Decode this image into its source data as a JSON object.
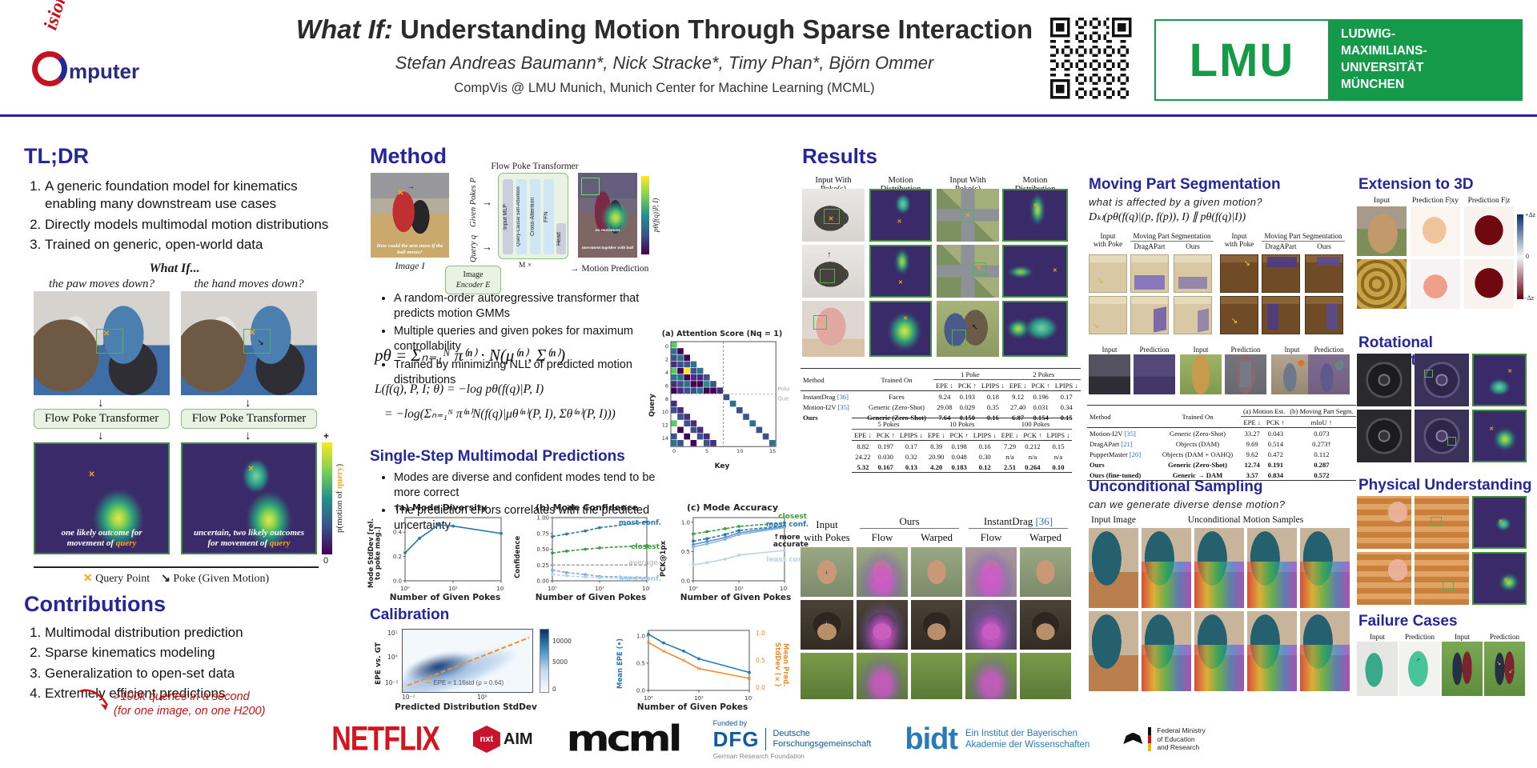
{
  "header": {
    "logo_top": "ision",
    "logo_bottom": "mputer",
    "title_italic": "What If:",
    "title_rest": " Understanding Motion Through Sparse Interaction",
    "authors": "Stefan Andreas Baumann*, Nick Stracke*, Timy Phan*, Björn Ommer",
    "affiliation": "CompVis @ LMU Munich, Munich Center for Machine Learning (MCML)",
    "lmu_acronym": "LMU",
    "lmu_name_1": "LUDWIG-",
    "lmu_name_2": "MAXIMILIANS-",
    "lmu_name_3": "UNIVERSITÄT",
    "lmu_name_4": "MÜNCHEN"
  },
  "tldr": {
    "heading": "TL;DR",
    "items": [
      "A generic foundation model for kinematics enabling many downstream use cases",
      "Directly models multimodal motion distributions",
      "Trained on generic, open-world data"
    ],
    "fig_title": "What If...",
    "cap_left": "the paw moves down?",
    "cap_right": "the hand moves down?",
    "box_label": "Flow Poke Transformer",
    "result_left_1": "one likely outcome for",
    "result_left_2": "movement of ",
    "result_right_1": "uncertain, two likely outcomes",
    "result_right_2": "for movement of ",
    "query_word": "query",
    "cbar_plus": "+",
    "cbar_zero": "0",
    "cbar_label_pre": "p(motion of ",
    "cbar_label_close": ")",
    "legend_query": "Query Point",
    "legend_poke": "Poke (Given Motion)"
  },
  "contributions": {
    "heading": "Contributions",
    "items": [
      "Multimodal distribution prediction",
      "Sparse kinematics modeling",
      "Generalization to open-set data",
      "Extremely efficient predictions"
    ],
    "note_1": ">100k queries in a second",
    "note_2": "(for one image, on one H200)"
  },
  "method": {
    "heading": "Method",
    "diagram": {
      "box_title": "Flow Poke Transformer",
      "image_label": "Image I",
      "image_caption": "How could the arm move if the ball moves?",
      "given_pokes_label": "Given Pokes P",
      "query_label": "Query q",
      "layers": [
        "Input MLP",
        "Query-Causal Self-Attention",
        "Cross-Attention",
        "FFN",
        "Head"
      ],
      "repeat_label": "M ×",
      "encoder_label_1": "Image",
      "encoder_label_2": "Encoder E",
      "output_label": "Motion Prediction",
      "output_caption_1": "no movement",
      "output_caption_2": "movement together with ball",
      "colorbar_label": "pθ(f(q)|P, I)"
    },
    "bullets": [
      "A random-order autoregressive transformer that predicts motion GMMs",
      "Multiple queries and given pokes for maximum controllability",
      "Trained by minimizing NLL of predicted motion distributions"
    ],
    "formulas": [
      "pθ = Σₙ₌₁ᴺ π⁽ⁿ⁾ · N(μ⁽ⁿ⁾, Σ⁽ⁿ⁾)",
      "L(f(q), P, I; θ) = −log pθ(f(q)|P, I)",
      "= −log(Σₙ₌₁ᴺ π⁽ⁿ⁾N(f(q)|μθ⁽ⁿ⁾(P, I), Σθ⁽ⁿ⁾(P, I)))"
    ],
    "attention": {
      "title": "(a) Attention Score (Nq = 1)",
      "xlabel": "Key",
      "ylabel": "Query",
      "labels": [
        "Pokes",
        "Queries"
      ],
      "xticks": [
        "0",
        "5",
        "10",
        "15"
      ],
      "yticks": [
        "0",
        "2",
        "4",
        "6",
        "8",
        "10",
        "12",
        "14"
      ]
    }
  },
  "single_step": {
    "heading": "Single-Step Multimodal Predictions",
    "bullets": [
      "Modes are diverse and confident modes tend to be more correct",
      "The prediction errors correlates with the predicted uncertainty"
    ],
    "plots": {
      "diversity": {
        "title": "(a) Mode Diversity",
        "ylabel_1": "Mode StdDev",
        "ylabel_2": "[rel. to poke mag.]",
        "xlabel": "Number of Given Pokes",
        "x": [
          1,
          2,
          5,
          10,
          100
        ],
        "xticks": [
          "10⁰",
          "10¹",
          "10²"
        ],
        "xtickvals": [
          1,
          10,
          100
        ],
        "ylim": [
          0,
          0.52
        ],
        "yticks": [
          "0.0",
          "0.2",
          "0.4"
        ],
        "series": [
          {
            "color": "#2878b5",
            "values": [
              0.23,
              0.35,
              0.46,
              0.45,
              0.39
            ]
          }
        ]
      },
      "confidence": {
        "title": "(b) Mode Confidence",
        "ylabel_1": "Confidence",
        "xlabel": "Number of Given Pokes",
        "x": [
          1,
          2,
          5,
          10,
          100
        ],
        "xticks": [
          "10⁰",
          "10¹",
          "10²"
        ],
        "xtickvals": [
          1,
          10,
          100
        ],
        "ylim": [
          0,
          1.0
        ],
        "yticks": [
          "0.00",
          "0.25",
          "0.50",
          "0.75",
          "1.00"
        ],
        "series": [
          {
            "name": "most conf.",
            "color": "#2878b5",
            "dash": true,
            "values": [
              0.7,
              0.74,
              0.79,
              0.84,
              0.93
            ]
          },
          {
            "name": "closest",
            "color": "#3d9c3d",
            "dash": true,
            "values": [
              0.44,
              0.47,
              0.5,
              0.52,
              0.56
            ]
          },
          {
            "name": "average",
            "color": "#aaaaaa",
            "dash": true,
            "nomark": true,
            "values": [
              0.25,
              0.25,
              0.25,
              0.25,
              0.25
            ]
          },
          {
            "color": "#7fb0d9",
            "dash": true,
            "values": [
              0.17,
              0.13,
              0.1,
              0.07,
              0.05
            ]
          },
          {
            "name": "least conf.",
            "color": "#b8d4ec",
            "dash": true,
            "values": [
              0.1,
              0.08,
              0.06,
              0.05,
              0.03
            ]
          }
        ]
      },
      "accuracy": {
        "title": "(c) Mode Accuracy",
        "ylabel_1": "PCK@1px",
        "xlabel": "Number of Given Pokes",
        "x": [
          1,
          2,
          5,
          10,
          100
        ],
        "xticks": [
          "10⁰",
          "10¹",
          "10²"
        ],
        "xtickvals": [
          1,
          10,
          100
        ],
        "ylim": [
          0,
          1.08
        ],
        "yticks": [
          "0.0",
          "0.5",
          "1.0"
        ],
        "annotation_1": "↑more",
        "annotation_2": "accurate",
        "series": [
          {
            "name": "closest",
            "color": "#3d9c3d",
            "dash": true,
            "values": [
              0.8,
              0.84,
              0.89,
              0.93,
              0.99
            ]
          },
          {
            "name": "most conf.",
            "color": "#2878b5",
            "dash": true,
            "values": [
              0.68,
              0.72,
              0.79,
              0.86,
              0.94
            ]
          },
          {
            "color": "#5b94c9",
            "values": [
              0.62,
              0.67,
              0.74,
              0.82,
              0.93
            ]
          },
          {
            "color": "#88b5dd",
            "values": [
              0.58,
              0.63,
              0.71,
              0.79,
              0.91
            ]
          },
          {
            "name": "least conf.",
            "color": "#b8d4ec",
            "values": [
              0.27,
              0.31,
              0.37,
              0.44,
              0.52
            ]
          }
        ]
      }
    }
  },
  "calibration": {
    "heading": "Calibration",
    "scatter": {
      "ylabel": "EPE vs. GT",
      "xlabel": "Predicted Distribution StdDev",
      "legend": "EPE ≈ 1.16std (ρ = 0.64)",
      "yticks": [
        "10¹",
        "10⁰",
        "10⁻¹"
      ],
      "xticks": [
        "10⁻¹",
        "10⁰"
      ],
      "cbar_ticks": [
        "10000",
        "5000",
        "0"
      ]
    },
    "epe_plot": {
      "ylabel_left": "Mean EPE (•)",
      "ylabel_right_1": "Mean Pred.",
      "ylabel_right_2": "StdDev (×)",
      "xlabel": "Number of Given Pokes",
      "x": [
        1,
        2,
        5,
        10,
        100
      ],
      "xticks": [
        "10⁰",
        "10¹",
        "10²"
      ],
      "xtickvals": [
        1,
        10,
        100
      ],
      "ylim": [
        0,
        1.1
      ],
      "yticks": [
        "0.0",
        "0.5",
        "1.0"
      ],
      "yticks_right": [
        "1.0",
        "0.5",
        "0.0"
      ],
      "series": [
        {
          "color": "#2878b5",
          "values": [
            1.03,
            0.87,
            0.72,
            0.58,
            0.33
          ]
        },
        {
          "color": "#f08c2d",
          "marker": "x",
          "values": [
            0.88,
            0.72,
            0.55,
            0.4,
            0.22
          ]
        }
      ]
    }
  },
  "results": {
    "heading": "Results",
    "grid_headers": [
      "Input With Poke(s)",
      "Motion Distribution",
      "Input With Poke(s)",
      "Motion Distribution"
    ],
    "table1": {
      "headers": {
        "method": "Method",
        "trained": "Trained On",
        "groups": [
          "1 Poke",
          "2 Pokes"
        ],
        "metrics": [
          "EPE ↓",
          "PCK ↑",
          "LPIPS ↓"
        ]
      },
      "rows": {
        "cells": [
          [
            "InstantDrag [36]",
            "Faces",
            "9.24",
            "0.193",
            "0.18",
            "9.12",
            "0.196",
            "0.17"
          ],
          [
            "Motion-I2V [35]",
            "Generic (Zero-Shot)",
            "29.08",
            "0.029",
            "0.35",
            "27.40",
            "0.031",
            "0.34"
          ],
          [
            "Ours",
            "Generic (Zero-Shot)",
            "7.64",
            "0.150",
            "0.16",
            "6.87",
            "0.154",
            "0.15"
          ]
        ],
        "bold": [
          false,
          false,
          true
        ]
      },
      "groups2": [
        "5 Pokes",
        "10 Pokes",
        "100 Pokes"
      ],
      "rows2": {
        "cells": [
          [
            "8.82",
            "0.197",
            "0.17",
            "8.39",
            "0.198",
            "0.16",
            "7.29",
            "0.212",
            "0.15"
          ],
          [
            "24.22",
            "0.030",
            "0.32",
            "20.90",
            "0.048",
            "0.30",
            "n/a",
            "n/a",
            "n/a"
          ],
          [
            "5.32",
            "0.167",
            "0.13",
            "4.20",
            "0.183",
            "0.12",
            "2.51",
            "0.264",
            "0.10"
          ]
        ],
        "bold": [
          false,
          false,
          true
        ]
      }
    },
    "qual": {
      "input_1": "Input",
      "input_2": "with Pokes",
      "ours": "Ours",
      "id_name": "InstantDrag ",
      "id_ref": "[36]",
      "flow": "Flow",
      "warped": "Warped"
    }
  },
  "mps": {
    "heading": "Moving Part Segmentation",
    "subtitle": "what is affected by a given motion?",
    "formula": "Dₖₗ(pθ(f(q)|(p, f(p)), I) ∥ pθ(f(q)|I))",
    "input_1": "Input",
    "input_2": "with Poke",
    "seg_header": "Moving Part Segmentation",
    "dragapart": "DragAPart",
    "ours": "Ours",
    "row_input": "Input",
    "row_prediction": "Prediction",
    "table2": {
      "headers": {
        "method": "Method",
        "trained": "Trained On",
        "group_a": "(a) Motion Est.",
        "group_b": "(b) Moving Part Segm.",
        "epe": "EPE ↓",
        "pck": "PCK ↑",
        "miou": "mIoU ↑"
      },
      "rows": {
        "cells": [
          [
            "Motion-I2V [35]",
            "Generic (Zero-Shot)",
            "33.27",
            "0.043",
            "0.073"
          ],
          [
            "DragAPart [21]",
            "Objects (DAM)",
            "9.69",
            "0.514",
            "0.273†"
          ],
          [
            "PuppetMaster [20]",
            "Objects (DAM + OAHQ)",
            "9.62",
            "0.472",
            "0.112"
          ],
          [
            "Ours",
            "Generic (Zero-Shot)",
            "12.74",
            "0.191",
            "0.287"
          ],
          [
            "Ours (fine-tuned)",
            "Generic → DAM",
            "3.57",
            "0.834",
            "0.572"
          ]
        ],
        "bold": [
          false,
          false,
          false,
          true,
          true
        ]
      }
    }
  },
  "unconditional": {
    "heading": "Unconditional Sampling",
    "subtitle": "can we generate diverse dense motion?",
    "col_input": "Input Image",
    "col_samples": "Unconditional Motion Samples"
  },
  "ext3d": {
    "heading": "Extension to 3D",
    "col_input": "Input",
    "col_fxy": "Prediction F|xy",
    "col_fz": "Prediction F|z",
    "cbar_top": "+Δz",
    "cbar_mid": "0",
    "cbar_bottom": "−Δz"
  },
  "rotational": {
    "heading": "Rotational Understanding"
  },
  "physical": {
    "heading": "Physical Understanding"
  },
  "failure": {
    "heading": "Failure Cases",
    "labels": [
      "Input",
      "Prediction",
      "Input",
      "Prediction"
    ]
  },
  "footer": {
    "netflix": "NETFLIX",
    "nxt": "nxt",
    "aim": "AIM",
    "mcml": "mcml",
    "dfg_funded": "Funded by",
    "dfg_acronym": "DFG",
    "dfg_name_1": "Deutsche",
    "dfg_name_2": "Forschungsgemeinschaft",
    "dfg_sub": "German Research Foundation",
    "bidt": "bidt",
    "bidt_text_1": "Ein Institut der Bayerischen",
    "bidt_text_2": "Akademie der Wissenschaften",
    "ministry_1": "Federal Ministry",
    "ministry_2": "of Education",
    "ministry_3": "and Research"
  }
}
